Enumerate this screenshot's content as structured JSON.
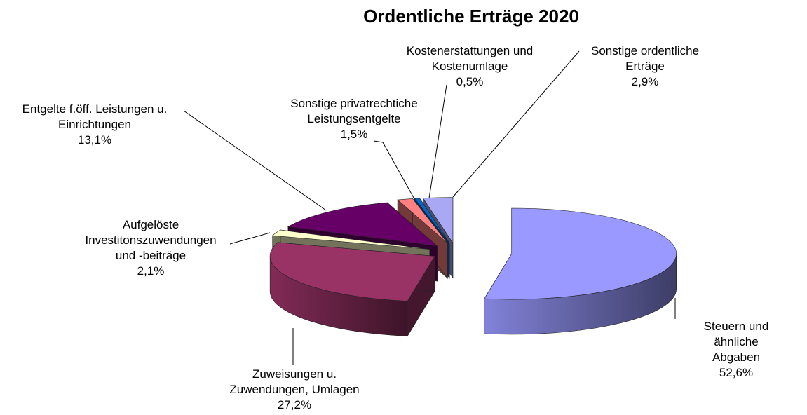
{
  "chart_data": {
    "type": "pie3d",
    "title": "Ordentliche Erträge 2020",
    "categories": [
      "Steuern und ähnliche\nAbgaben",
      "Zuweisungen u.\nZuwendungen, Umlagen",
      "Aufgelöste\nInvestitonszuwendungen\nund -beiträge",
      "Entgelte f.öff. Leistungen u.\nEinrichtungen",
      "Sonstige privatrechtiche\nLeistungsentgelte",
      "Kostenerstattungen und\nKostenumlage",
      "Sonstige ordentliche\nErträge"
    ],
    "values": [
      52.6,
      27.2,
      2.1,
      13.1,
      1.5,
      0.5,
      2.9
    ],
    "value_labels": [
      "52,6%",
      "27,2%",
      "2,1%",
      "13,1%",
      "1,5%",
      "0,5%",
      "2,9%"
    ],
    "colors": [
      "#9999ff",
      "#993366",
      "#ffffcc",
      "#660066",
      "#ff8080",
      "#0066cc",
      "#a8a8f4"
    ]
  }
}
